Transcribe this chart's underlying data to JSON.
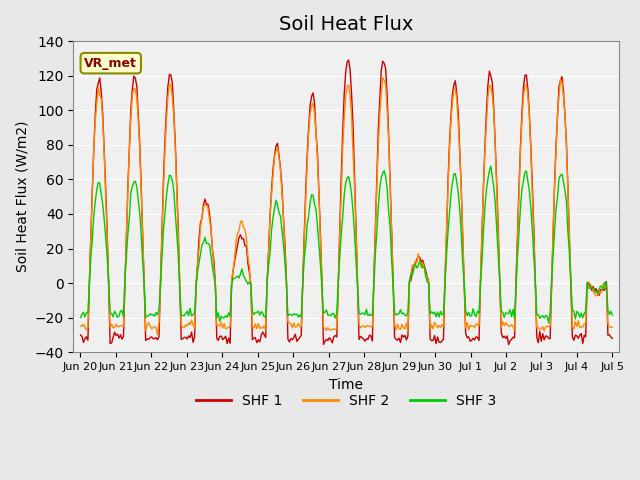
{
  "title": "Soil Heat Flux",
  "ylabel": "Soil Heat Flux (W/m2)",
  "xlabel": "Time",
  "ylim": [
    -40,
    140
  ],
  "legend_label": "VR_met",
  "series_labels": [
    "SHF 1",
    "SHF 2",
    "SHF 3"
  ],
  "series_colors": [
    "#cc0000",
    "#ff8800",
    "#00cc00"
  ],
  "background_color": "#e8e8e8",
  "plot_bg_color": "#f0f0f0",
  "grid_color": "#ffffff",
  "tick_labels": [
    "Jun 20",
    "Jun 21",
    "Jun 22",
    "Jun 23",
    "Jun 24",
    "Jun 25",
    "Jun 26",
    "Jun 27",
    "Jun 28",
    "Jun 29",
    "Jun 30",
    "Jul 1",
    "Jul 2",
    "Jul 3",
    "Jul 4",
    "Jul 5"
  ],
  "title_fontsize": 14,
  "axis_fontsize": 10,
  "legend_fontsize": 10
}
